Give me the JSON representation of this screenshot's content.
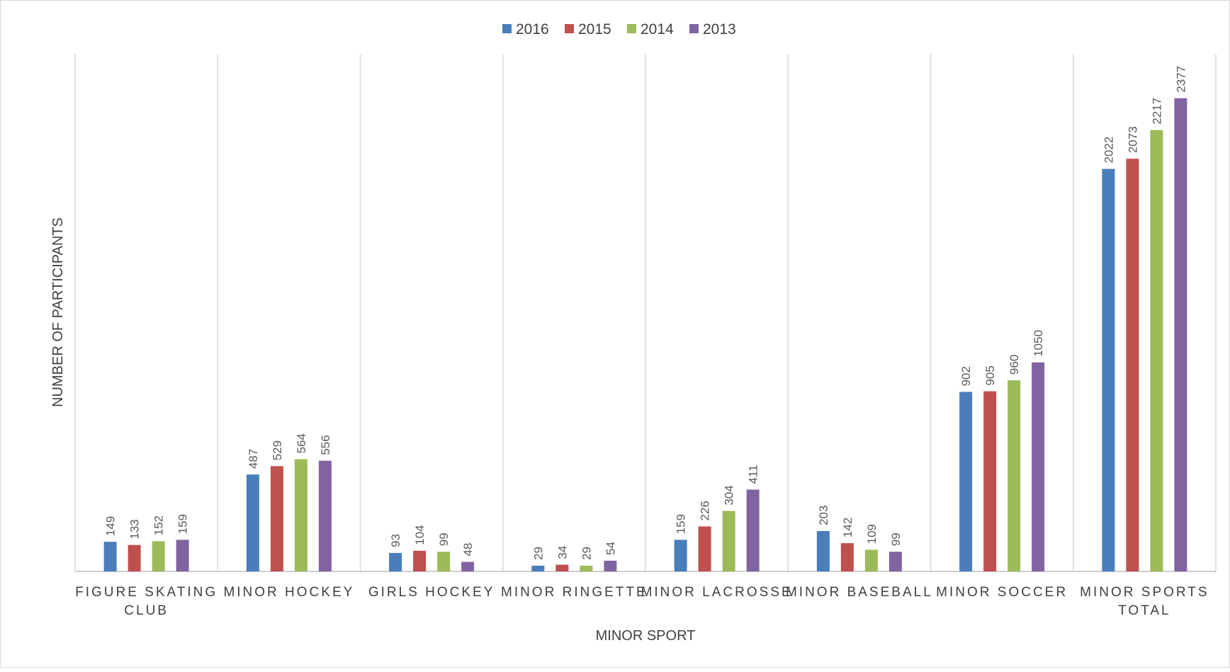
{
  "chart_data": {
    "type": "bar",
    "title": "",
    "xlabel": "MINOR SPORT",
    "ylabel": "NUMBER OF PARTICIPANTS",
    "ylim": [
      0,
      2600
    ],
    "grid": "vertical category separators",
    "legend_position": "top-center",
    "categories": [
      [
        "FIGURE SKATING",
        "CLUB"
      ],
      [
        "MINOR HOCKEY"
      ],
      [
        "GIRLS HOCKEY"
      ],
      [
        "MINOR RINGETTE"
      ],
      [
        "MINOR LACROSSE"
      ],
      [
        "MINOR BASEBALL"
      ],
      [
        "MINOR SOCCER"
      ],
      [
        "MINOR SPORTS",
        "TOTAL"
      ]
    ],
    "series": [
      {
        "name": "2016",
        "color": "#4a7ebb",
        "values": [
          149,
          487,
          93,
          29,
          159,
          203,
          902,
          2022
        ]
      },
      {
        "name": "2015",
        "color": "#c0504d",
        "values": [
          133,
          529,
          104,
          34,
          226,
          142,
          905,
          2073
        ]
      },
      {
        "name": "2014",
        "color": "#9bbb59",
        "values": [
          152,
          564,
          99,
          29,
          304,
          109,
          960,
          2217
        ]
      },
      {
        "name": "2013",
        "color": "#8064a2",
        "values": [
          159,
          556,
          48,
          54,
          411,
          99,
          1050,
          2377
        ]
      }
    ]
  }
}
